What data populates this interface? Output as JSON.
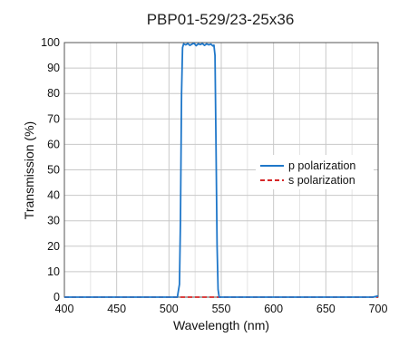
{
  "chart_data": {
    "type": "line",
    "title": "PBP01-529/23-25x36",
    "xlabel": "Wavelength (nm)",
    "ylabel": "Transmission (%)",
    "xlim": [
      400,
      700
    ],
    "ylim": [
      0,
      100
    ],
    "x_ticks": [
      "400",
      "450",
      "500",
      "550",
      "600",
      "650",
      "700"
    ],
    "y_ticks": [
      "0",
      "10",
      "20",
      "30",
      "40",
      "50",
      "60",
      "70",
      "80",
      "90",
      "100"
    ],
    "grid": true,
    "legend_position": "right",
    "series": [
      {
        "name": "p polarization",
        "color": "#1f77c9",
        "style": "solid",
        "x": [
          400,
          450,
          500,
          508,
          510,
          511,
          512,
          513,
          514,
          516,
          518,
          520,
          522,
          524,
          526,
          528,
          530,
          532,
          534,
          536,
          538,
          540,
          542,
          543,
          544,
          545,
          546,
          547,
          548,
          550,
          600,
          650,
          695,
          700
        ],
        "y": [
          0,
          0,
          0,
          0,
          5,
          30,
          80,
          98,
          99.5,
          99.1,
          99.6,
          98.9,
          99.4,
          99.7,
          98.8,
          99.5,
          99.2,
          99.6,
          98.9,
          99.5,
          99.1,
          99.4,
          98.7,
          99,
          95,
          60,
          20,
          3,
          0,
          0,
          0,
          0,
          0,
          0.5
        ]
      },
      {
        "name": "s polarization",
        "color": "#d62728",
        "style": "dashed",
        "x": [
          400,
          700
        ],
        "y": [
          0,
          0
        ]
      }
    ]
  }
}
